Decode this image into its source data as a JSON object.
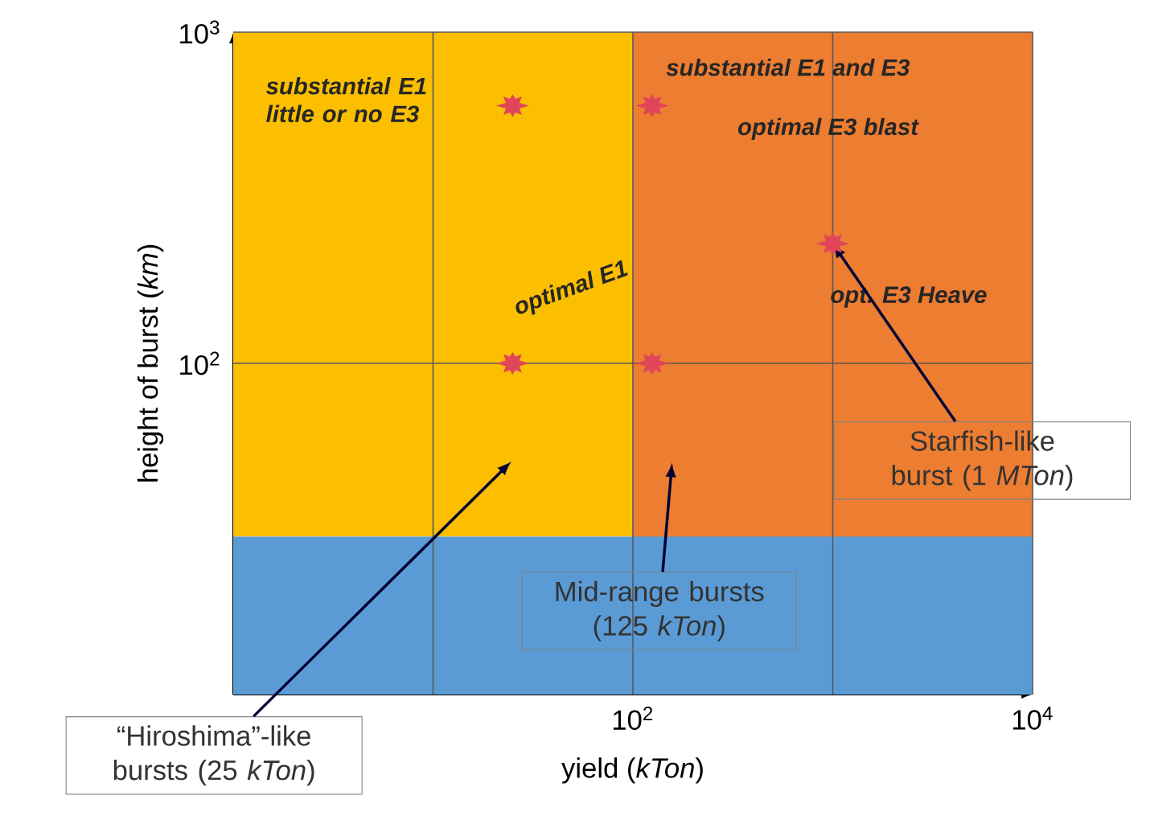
{
  "chart_data": {
    "type": "scatter",
    "xlabel": "yield (*kTon*)",
    "ylabel": "height of burst (*km*)",
    "log": "xy",
    "xlim": [
      1,
      10000
    ],
    "ylim": [
      10,
      1000
    ],
    "xticks": [
      {
        "value": 10,
        "label": null
      },
      {
        "value": 100,
        "label": "10$^{2}$"
      },
      {
        "value": 1000,
        "label": null
      },
      {
        "value": 10000,
        "label": "10$^{4}$"
      }
    ],
    "yticks": [
      {
        "value": 100,
        "label": "10$^{2}$"
      },
      {
        "value": 1000,
        "label": "10$^{3}$"
      }
    ],
    "grid": true,
    "marker": "star",
    "x": [
      25,
      25,
      125,
      125,
      1000
    ],
    "series": [
      {
        "color": "#e0455a",
        "values": [
          600,
          100,
          600,
          100,
          230
        ]
      }
    ],
    "bands": [
      {
        "axis": "y",
        "from": 30,
        "to": 1000,
        "color": "#fbbf00"
      },
      {
        "axis": "x",
        "from": 100,
        "to": 10000,
        "color": "#ed7d31"
      },
      {
        "axis": "y",
        "from": 10,
        "to": 30,
        "color": "#5b9bd5"
      }
    ],
    "annotations": [
      "substantial E1 little or no E3",
      "substantial E1 and E3",
      "optimal E3 blast",
      "opt. E3 Heave",
      "optimal E1",
      "“Hiroshima”-like bursts (25 *kTon*)",
      "Mid-range bursts (125 *kTon*)",
      {
        "text": "Starfish-like burst (1 *MTon*)",
        "x": 1000,
        "y": 230
      }
    ]
  }
}
